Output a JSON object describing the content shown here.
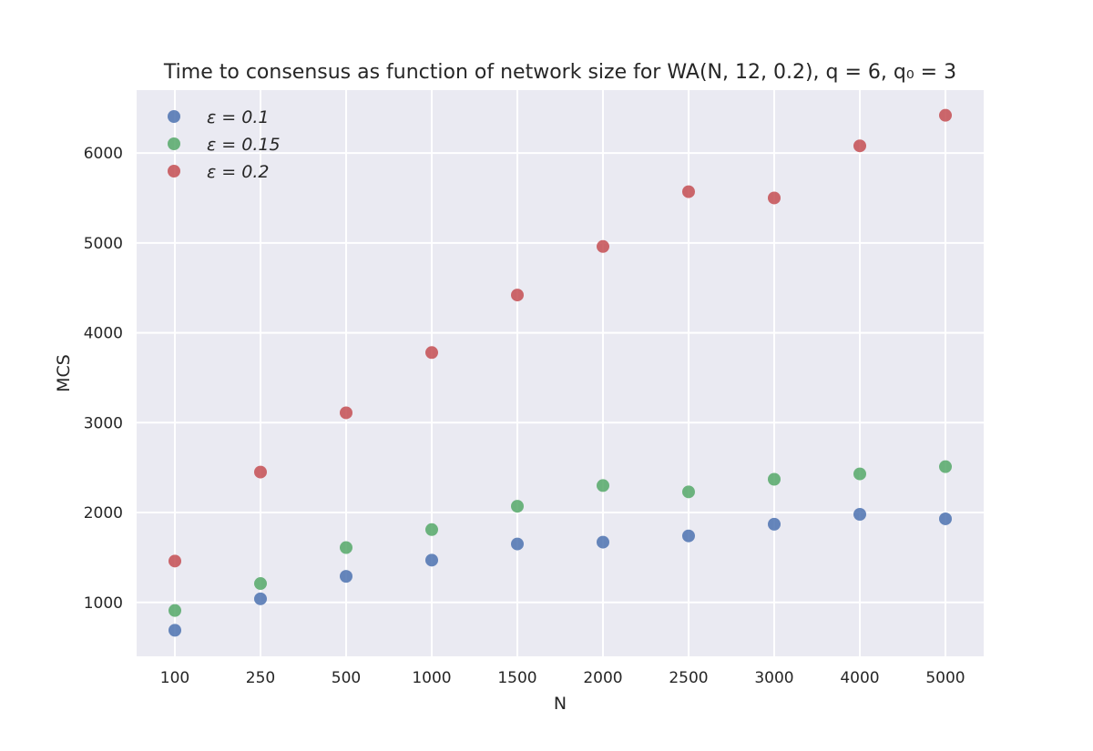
{
  "chart_data": {
    "type": "scatter",
    "title": "Time to consensus as function of network size for WA(N, 12, 0.2), q = 6, q₀ = 3",
    "xlabel": "N",
    "ylabel": "MCS",
    "categories": [
      "100",
      "250",
      "500",
      "1000",
      "1500",
      "2000",
      "2500",
      "3000",
      "4000",
      "5000"
    ],
    "ylim": [
      400,
      6700
    ],
    "yticks": [
      1000,
      2000,
      3000,
      4000,
      5000,
      6000
    ],
    "grid": true,
    "legend_position": "top-left",
    "series": [
      {
        "name": "ε = 0.1",
        "color": "#4c72b0",
        "values": [
          690,
          1040,
          1290,
          1470,
          1650,
          1670,
          1740,
          1870,
          1980,
          1930
        ]
      },
      {
        "name": "ε = 0.15",
        "color": "#55a868",
        "values": [
          910,
          1210,
          1610,
          1810,
          2070,
          2300,
          2230,
          2370,
          2430,
          2510
        ]
      },
      {
        "name": "ε = 0.2",
        "color": "#c44e52",
        "values": [
          1460,
          2450,
          3110,
          3780,
          4420,
          4960,
          5570,
          5500,
          6080,
          6420
        ]
      }
    ]
  }
}
